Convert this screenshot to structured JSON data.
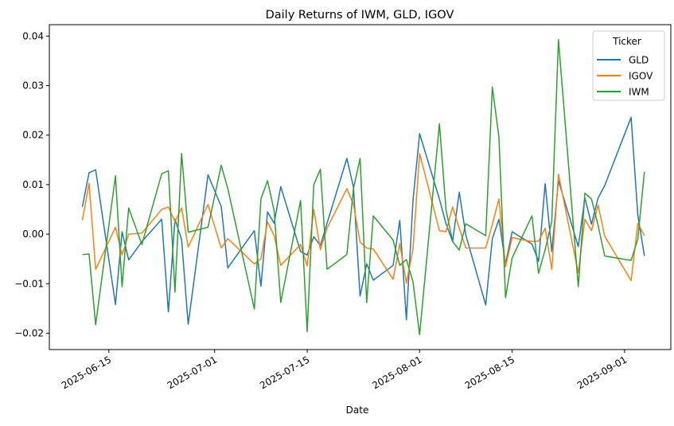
{
  "chart_data": {
    "type": "line",
    "title": "Daily Returns of IWM, GLD, IGOV",
    "xlabel": "Date",
    "ylabel": "",
    "ylim": [
      -0.0233,
      0.0423
    ],
    "xlim": [
      "2025-06-06",
      "2025-09-08"
    ],
    "yticks": [
      -0.02,
      -0.01,
      0.0,
      0.01,
      0.02,
      0.03,
      0.04
    ],
    "ytick_labels": [
      "−0.02",
      "−0.01",
      "0.00",
      "0.01",
      "0.02",
      "0.03",
      "0.04"
    ],
    "xticks": [
      "2025-06-15",
      "2025-07-01",
      "2025-07-15",
      "2025-08-01",
      "2025-08-15",
      "2025-09-01"
    ],
    "grid": false,
    "legend": {
      "title": "Ticker",
      "placement": "top-right"
    },
    "x": [
      "2025-06-11",
      "2025-06-12",
      "2025-06-13",
      "2025-06-16",
      "2025-06-17",
      "2025-06-18",
      "2025-06-20",
      "2025-06-23",
      "2025-06-24",
      "2025-06-25",
      "2025-06-26",
      "2025-06-27",
      "2025-06-30",
      "2025-07-02",
      "2025-07-03",
      "2025-07-07",
      "2025-07-08",
      "2025-07-09",
      "2025-07-10",
      "2025-07-11",
      "2025-07-14",
      "2025-07-15",
      "2025-07-16",
      "2025-07-17",
      "2025-07-18",
      "2025-07-21",
      "2025-07-22",
      "2025-07-23",
      "2025-07-24",
      "2025-07-25",
      "2025-07-28",
      "2025-07-29",
      "2025-07-30",
      "2025-07-31",
      "2025-08-01",
      "2025-08-04",
      "2025-08-05",
      "2025-08-06",
      "2025-08-07",
      "2025-08-08",
      "2025-08-11",
      "2025-08-12",
      "2025-08-13",
      "2025-08-14",
      "2025-08-15",
      "2025-08-18",
      "2025-08-19",
      "2025-08-20",
      "2025-08-21",
      "2025-08-22",
      "2025-08-25",
      "2025-08-26",
      "2025-08-27",
      "2025-08-28",
      "2025-08-29",
      "2025-09-02",
      "2025-09-03",
      "2025-09-04"
    ],
    "series": [
      {
        "name": "GLD",
        "color": "#1f77b4",
        "values": [
          0.0055,
          0.0124,
          0.013,
          -0.0142,
          0.0005,
          -0.0052,
          -0.0015,
          0.003,
          -0.0157,
          0.003,
          -0.0011,
          -0.0182,
          0.012,
          0.0056,
          -0.0068,
          0.0007,
          -0.0105,
          0.0045,
          0.0022,
          0.0096,
          -0.0035,
          -0.0042,
          -0.0005,
          -0.0023,
          0.0022,
          0.0153,
          0.0095,
          -0.0125,
          -0.006,
          -0.0093,
          -0.0063,
          0.0028,
          -0.0173,
          0.0068,
          0.0203,
          0.0071,
          0.0021,
          -0.0015,
          0.0085,
          -0.0002,
          -0.0143,
          -0.0009,
          0.003,
          -0.006,
          0.0005,
          -0.002,
          -0.0055,
          0.0102,
          -0.0035,
          0.0108,
          -0.0025,
          0.0073,
          0.002,
          0.0073,
          0.0098,
          0.0236,
          0.0039,
          -0.0044
        ]
      },
      {
        "name": "IGOV",
        "color": "#ff7f0e",
        "values": [
          0.0028,
          0.0103,
          -0.0071,
          0.0014,
          -0.0042,
          0.0,
          0.0002,
          0.005,
          0.0055,
          0.0025,
          0.0053,
          -0.0026,
          0.006,
          -0.0028,
          -0.0009,
          -0.006,
          -0.005,
          0.0025,
          -0.0003,
          -0.0063,
          -0.0021,
          -0.0064,
          0.005,
          -0.0031,
          0.0012,
          0.0092,
          0.006,
          -0.0016,
          -0.0028,
          -0.003,
          -0.0091,
          -0.0019,
          -0.0099,
          -0.003,
          0.0163,
          0.0007,
          0.0005,
          0.0055,
          0.0012,
          -0.0028,
          -0.0028,
          0.002,
          0.0071,
          -0.0066,
          -0.0007,
          -0.0015,
          -0.0014,
          0.0012,
          -0.0071,
          0.0121,
          -0.0078,
          0.003,
          0.0007,
          0.0059,
          -0.0004,
          -0.0094,
          0.0022,
          -0.0003
        ]
      },
      {
        "name": "IWM",
        "color": "#2ca02c",
        "values": [
          -0.0041,
          -0.004,
          -0.0183,
          0.0118,
          -0.0106,
          0.0053,
          -0.0021,
          0.0122,
          0.0128,
          -0.0117,
          0.0163,
          0.0004,
          0.0014,
          0.0139,
          0.0092,
          -0.0151,
          0.0071,
          0.0108,
          0.0047,
          -0.0138,
          0.0068,
          -0.0197,
          0.01,
          0.0131,
          -0.0071,
          -0.0041,
          0.0092,
          0.0153,
          -0.0138,
          0.0037,
          -0.0012,
          -0.0063,
          -0.0051,
          -0.0096,
          -0.0203,
          0.0223,
          0.0049,
          -0.0015,
          -0.0032,
          0.0021,
          -0.0003,
          0.0297,
          0.0196,
          -0.0128,
          -0.0048,
          0.0037,
          -0.0079,
          -0.0031,
          0.0026,
          0.0393,
          -0.0106,
          0.0083,
          0.0071,
          0.0018,
          -0.0044,
          -0.0053,
          -0.001,
          0.0126
        ]
      }
    ]
  }
}
